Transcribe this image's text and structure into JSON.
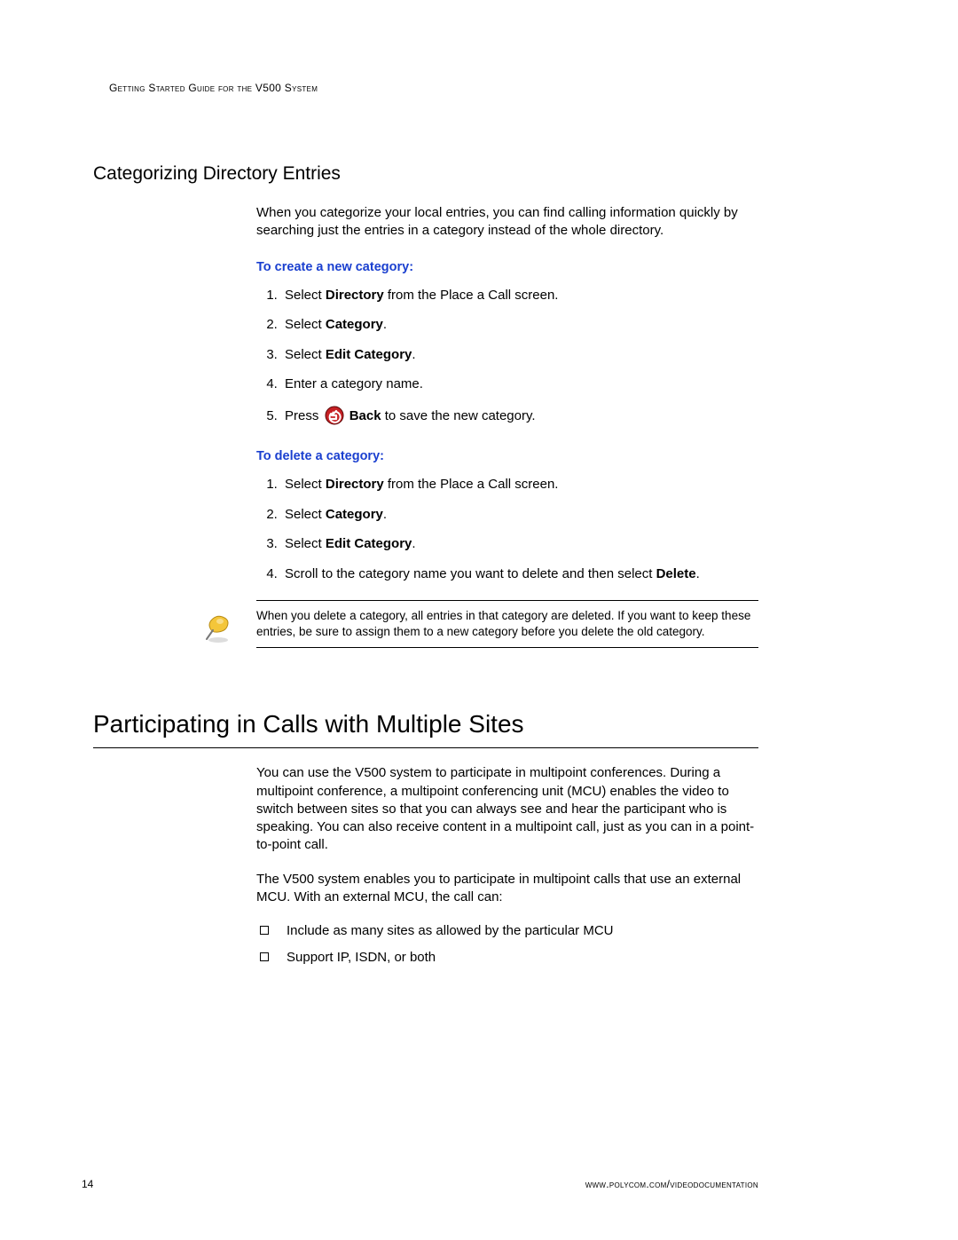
{
  "runningHead": "Getting Started Guide for the V500 System",
  "section1": {
    "title": "Categorizing Directory Entries",
    "intro": "When you categorize your local entries, you can find calling information quickly by searching just the entries in a category instead of the whole directory.",
    "proc1": {
      "heading": "To create a new category:",
      "steps": [
        {
          "pre": "Select ",
          "bold": "Directory",
          "post": " from the Place a Call screen."
        },
        {
          "pre": "Select ",
          "bold": "Category",
          "post": "."
        },
        {
          "pre": "Select ",
          "bold": "Edit Category",
          "post": "."
        },
        {
          "pre": "Enter a category name.",
          "bold": "",
          "post": ""
        },
        {
          "pre": "Press ",
          "icon": true,
          "bold": "Back",
          "post": " to save the new category."
        }
      ]
    },
    "proc2": {
      "heading": "To delete a category:",
      "steps": [
        {
          "pre": "Select ",
          "bold": "Directory",
          "post": " from the Place a Call screen."
        },
        {
          "pre": "Select ",
          "bold": "Category",
          "post": "."
        },
        {
          "pre": "Select ",
          "bold": "Edit Category",
          "post": "."
        },
        {
          "pre": "Scroll to the category name you want to delete and then select ",
          "bold": "Delete",
          "post": "."
        }
      ]
    },
    "note": "When you delete a category, all entries in that category are deleted. If you want to keep these entries, be sure to assign them to a new category before you delete the old category."
  },
  "section2": {
    "title": "Participating in Calls with Multiple Sites",
    "p1": "You can use the V500 system to participate in multipoint conferences. During a multipoint conference, a multipoint conferencing unit (MCU) enables the video to switch between sites so that you can always see and hear the participant who is speaking. You can also receive content in a multipoint call, just as you can in a point-to-point call.",
    "p2": "The V500 system enables you to participate in multipoint calls that use an external MCU. With an external MCU, the call can:",
    "bullets": [
      "Include as many sites as allowed by the particular MCU",
      "Support IP, ISDN, or both"
    ]
  },
  "footer": {
    "pageNumber": "14",
    "url": "www.polycom.com/videodocumentation"
  },
  "colors": {
    "headingBlue": "#1a3fcf",
    "backIconFill": "#c62024",
    "backIconBorder": "#5a0a0a",
    "pinYellow": "#f4c63a",
    "pinShadow": "#b88c15"
  }
}
